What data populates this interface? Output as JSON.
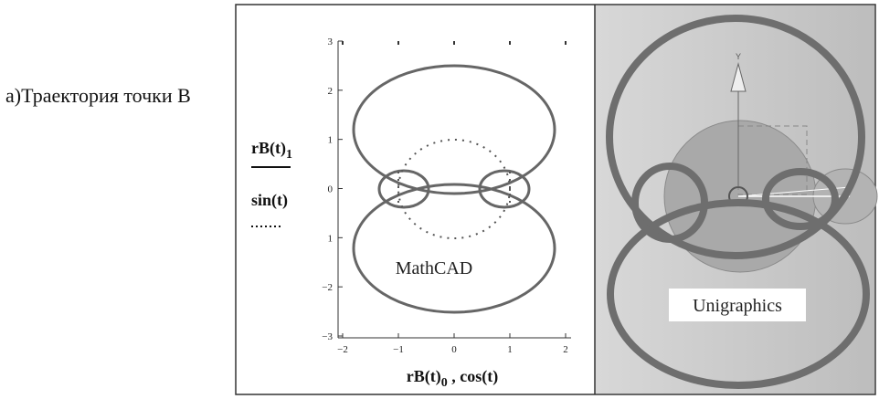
{
  "caption": "а)Траектория точки В",
  "plot": {
    "y_label": {
      "top": "rB(t)",
      "top_subscript": "1",
      "bottom": "sin(t)"
    },
    "x_label": {
      "first": "rB(t)",
      "first_subscript": "0",
      "rest": " , cos(t)"
    },
    "xticks": [
      "−2",
      "−1",
      "0",
      "1",
      "2"
    ],
    "yticks": [
      "3",
      "2",
      "1",
      "0",
      "1",
      "−2",
      "−3"
    ],
    "annotation": "MathCAD"
  },
  "screenshot": {
    "axis_label": "Y",
    "annotation": "Unigraphics"
  }
}
